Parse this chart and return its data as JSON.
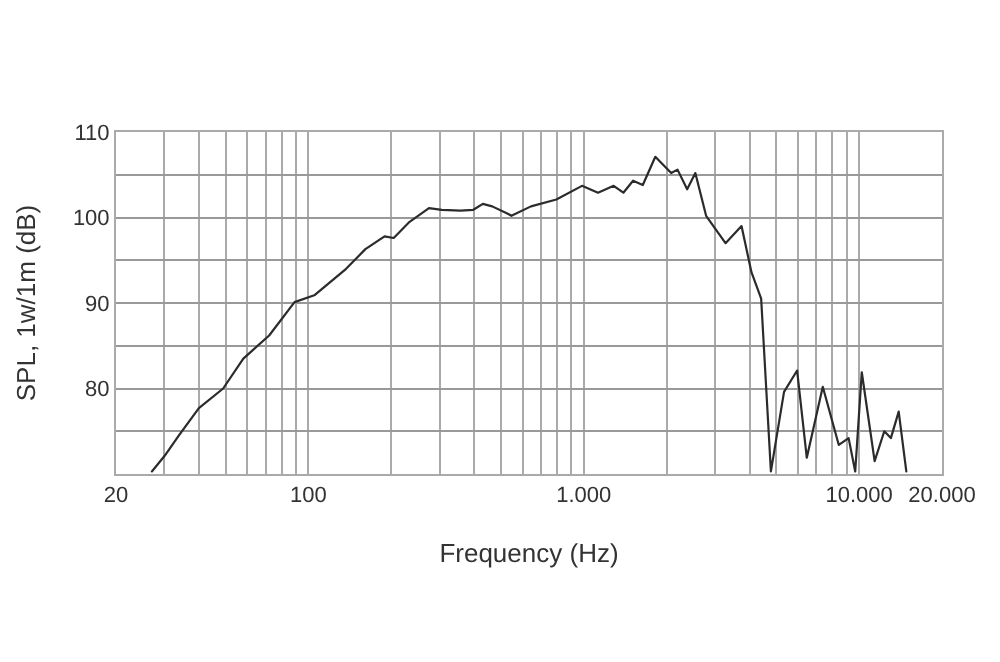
{
  "chart_data": {
    "type": "line",
    "xlabel": "Frequency (Hz)",
    "ylabel": "SPL, 1w/1m (dB)",
    "log": "x",
    "grid": true,
    "marker": "none",
    "line_style": "solid",
    "xlim": [
      20,
      20000
    ],
    "ylim": [
      70,
      110
    ],
    "xticks": [
      20,
      {
        "value": 30,
        "label": null
      },
      {
        "value": 40,
        "label": null
      },
      {
        "value": 50,
        "label": null
      },
      {
        "value": 60,
        "label": null
      },
      {
        "value": 70,
        "label": null
      },
      {
        "value": 80,
        "label": null
      },
      {
        "value": 90,
        "label": null
      },
      100,
      {
        "value": 200,
        "label": null
      },
      {
        "value": 300,
        "label": null
      },
      {
        "value": 400,
        "label": null
      },
      {
        "value": 500,
        "label": null
      },
      {
        "value": 600,
        "label": null
      },
      {
        "value": 700,
        "label": null
      },
      {
        "value": 800,
        "label": null
      },
      {
        "value": 900,
        "label": null
      },
      {
        "value": 1000,
        "label": "1.000"
      },
      {
        "value": 2000,
        "label": null
      },
      {
        "value": 3000,
        "label": null
      },
      {
        "value": 4000,
        "label": null
      },
      {
        "value": 5000,
        "label": null
      },
      {
        "value": 6000,
        "label": null
      },
      {
        "value": 7000,
        "label": null
      },
      {
        "value": 8000,
        "label": null
      },
      {
        "value": 9000,
        "label": null
      },
      {
        "value": 10000,
        "label": "10.000"
      },
      {
        "value": 20000,
        "label": "20.000"
      }
    ],
    "yticks": [
      {
        "value": 70,
        "label": null
      },
      {
        "value": 75,
        "label": null
      },
      80,
      {
        "value": 85,
        "label": null
      },
      90,
      {
        "value": 95,
        "label": null
      },
      100,
      {
        "value": 105,
        "label": null
      },
      110
    ],
    "series": [
      {
        "color": "#2b2b2b",
        "x": [
          27,
          30,
          34,
          40,
          49,
          58,
          72,
          89,
          105,
          137,
          161,
          189,
          204,
          233,
          274,
          305,
          357,
          397,
          430,
          465,
          532,
          546,
          643,
          795,
          985,
          1126,
          1284,
          1392,
          1510,
          1638,
          1819,
          2077,
          2190,
          2374,
          2542,
          2782,
          3272,
          3740,
          4064,
          4408,
          4782,
          5337,
          5954,
          6456,
          7380,
          8438,
          9160,
          9680,
          10226,
          11387,
          12345,
          13040,
          13925,
          14840
        ],
        "values": [
          70.3,
          72.1,
          74.6,
          77.7,
          80.0,
          83.5,
          86.2,
          90.1,
          90.9,
          94.0,
          96.3,
          97.8,
          97.6,
          99.5,
          101.1,
          100.9,
          100.8,
          100.9,
          101.6,
          101.3,
          100.4,
          100.2,
          101.3,
          102.1,
          103.7,
          102.9,
          103.7,
          102.9,
          104.3,
          103.8,
          107.1,
          105.2,
          105.6,
          103.3,
          105.2,
          100.2,
          97.0,
          99.0,
          93.6,
          90.5,
          70.3,
          79.6,
          82.1,
          71.9,
          80.2,
          73.4,
          74.2,
          70.3,
          81.9,
          71.5,
          75.0,
          74.2,
          77.3,
          70.3
        ]
      }
    ]
  }
}
